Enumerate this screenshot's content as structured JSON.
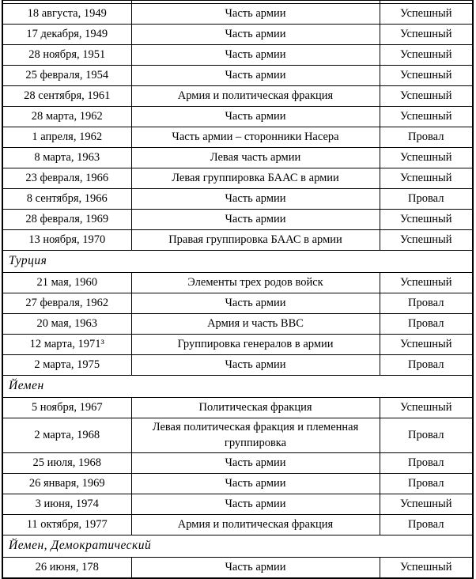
{
  "table": {
    "kind": "book-scan-table",
    "columns": [
      "date",
      "description",
      "result"
    ],
    "result_values": [
      "Успешный",
      "Провал"
    ],
    "top_partial_row": true,
    "colors": {
      "border": "#000000",
      "text": "#000000",
      "background": "#ffffff"
    },
    "sections": [
      {
        "header": "",
        "rows": [
          {
            "date": "18 августа, 1949",
            "description": "Часть армии",
            "result": "Успешный"
          },
          {
            "date": "17 декабря, 1949",
            "description": "Часть армии",
            "result": "Успешный"
          },
          {
            "date": "28 ноября, 1951",
            "description": "Часть армии",
            "result": "Успешный"
          },
          {
            "date": "25 февраля, 1954",
            "description": "Часть армии",
            "result": "Успешный"
          },
          {
            "date": "28 сентября, 1961",
            "description": "Армия и политическая фракция",
            "result": "Успешный"
          },
          {
            "date": "28 марта, 1962",
            "description": "Часть армии",
            "result": "Успешный"
          },
          {
            "date": "1 апреля, 1962",
            "description": "Часть армии – сторонники Насера",
            "result": "Провал"
          },
          {
            "date": "8 марта,  1963",
            "description": "Левая часть армии",
            "result": "Успешный"
          },
          {
            "date": "23 февраля, 1966",
            "description": "Левая группировка БААС в армии",
            "result": "Успешный"
          },
          {
            "date": "8 сентября, 1966",
            "description": "Часть армии",
            "result": "Провал"
          },
          {
            "date": "28 февраля, 1969",
            "description": "Часть армии",
            "result": "Успешный"
          },
          {
            "date": "13 ноября, 1970",
            "description": "Правая группировка БААС в армии",
            "result": "Успешный"
          }
        ]
      },
      {
        "header": "Турция",
        "rows": [
          {
            "date": "21 мая, 1960",
            "description": "Элементы трех родов войск",
            "result": "Успешный"
          },
          {
            "date": "27 февраля, 1962",
            "description": "Часть армии",
            "result": "Провал"
          },
          {
            "date": "20 мая, 1963",
            "description": "Армия и часть ВВС",
            "result": "Провал"
          },
          {
            "date": "12 марта, 1971³",
            "description": "Группировка генералов в армии",
            "result": "Успешный"
          },
          {
            "date": "2 марта, 1975",
            "description": "Часть армии",
            "result": "Провал"
          }
        ]
      },
      {
        "header": "Йемен",
        "rows": [
          {
            "date": "5 ноября, 1967",
            "description": "Политическая фракция",
            "result": "Успешный"
          },
          {
            "date": "2 марта, 1968",
            "description": "Левая политическая фракция и племенная группировка",
            "result": "Провал"
          },
          {
            "date": "25 июля, 1968",
            "description": "Часть армии",
            "result": "Провал"
          },
          {
            "date": "26 января, 1969",
            "description": "Часть армии",
            "result": "Провал"
          },
          {
            "date": "3 июня, 1974",
            "description": "Часть армии",
            "result": "Успешный"
          },
          {
            "date": "11 октября, 1977",
            "description": "Армия и политическая фракция",
            "result": "Провал"
          }
        ]
      },
      {
        "header": "Йемен, Демократический",
        "rows": [
          {
            "date": "26 июня, 178",
            "description": "Часть армии",
            "result": "Успешный"
          }
        ]
      }
    ]
  }
}
